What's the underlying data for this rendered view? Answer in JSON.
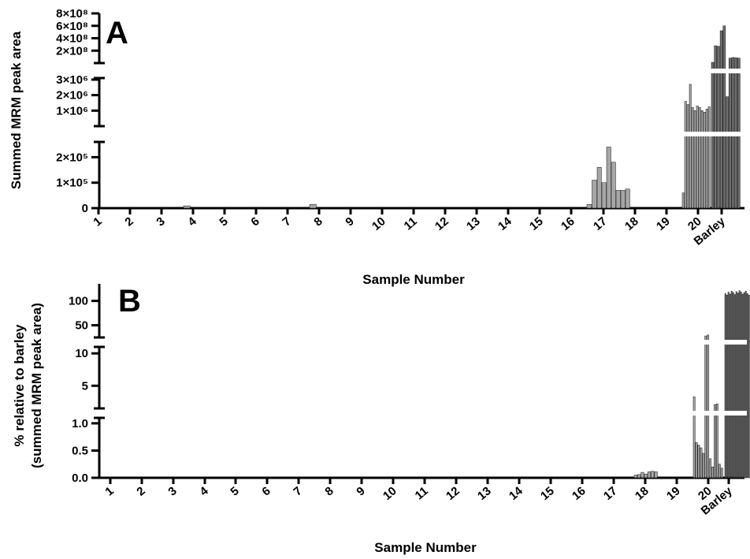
{
  "chart_data": [
    {
      "panel": "A",
      "type": "bar",
      "xlabel": "Sample Number",
      "ylabel": "Summed MRM peak area",
      "categories": [
        "1",
        "2",
        "3",
        "4",
        "5",
        "6",
        "7",
        "8",
        "9",
        "10",
        "11",
        "12",
        "13",
        "14",
        "15",
        "16",
        "17",
        "18",
        "19",
        "20",
        "Barley"
      ],
      "y_segments": [
        {
          "range": [
            0,
            260000
          ],
          "ticks": [
            0,
            100000,
            200000
          ],
          "tick_labels": [
            "0",
            "1×10⁵",
            "2×10⁵"
          ]
        },
        {
          "range": [
            0,
            3100000
          ],
          "ticks": [
            1000000,
            2000000,
            3000000
          ],
          "tick_labels": [
            "1×10⁶",
            "2×10⁶",
            "3×10⁶"
          ]
        },
        {
          "range": [
            0,
            800000000
          ],
          "ticks": [
            200000000,
            400000000,
            600000000,
            800000000
          ],
          "tick_labels": [
            "2×10⁸",
            "4×10⁸",
            "6×10⁸",
            "8×10⁸"
          ]
        }
      ],
      "colors": {
        "samples": "#a6a6a6",
        "barley": "#6e6e6e"
      },
      "groups": [
        {
          "category": "4",
          "values": [
            9000
          ]
        },
        {
          "category": "8",
          "values": [
            15000
          ]
        },
        {
          "category": "17",
          "values": [
            15000,
            110000
          ]
        },
        {
          "category": "18",
          "values": [
            160000,
            100000,
            240000,
            180000,
            70000,
            70000,
            75000
          ]
        },
        {
          "category": "20",
          "values": [
            60000,
            1600000,
            1400000,
            2700000,
            1200000,
            1000000,
            1300000,
            1200000,
            1000000,
            900000,
            1100000,
            1250000
          ]
        },
        {
          "category": "Barley",
          "values": [
            12000000,
            280000000,
            270000000,
            520000000,
            600000000,
            1900000,
            80000000,
            90000000,
            85000000,
            80000000
          ]
        }
      ]
    },
    {
      "panel": "B",
      "type": "bar",
      "xlabel": "Sample Number",
      "ylabel_line1": "% relative to barley",
      "ylabel_line2": "(summed MRM peak area)",
      "categories": [
        "1",
        "2",
        "3",
        "4",
        "5",
        "6",
        "7",
        "8",
        "9",
        "10",
        "11",
        "12",
        "13",
        "14",
        "15",
        "16",
        "17",
        "18",
        "19",
        "20",
        "Barley"
      ],
      "y_segments": [
        {
          "range": [
            0,
            1.1
          ],
          "ticks": [
            0,
            0.5,
            1.0
          ],
          "tick_labels": [
            "0.0",
            "0.5",
            "1.0"
          ]
        },
        {
          "range": [
            1.5,
            11
          ],
          "ticks": [
            5,
            10
          ],
          "tick_labels": [
            "5",
            "10"
          ]
        },
        {
          "range": [
            25,
            135
          ],
          "ticks": [
            50,
            100
          ],
          "tick_labels": [
            "50",
            "100"
          ]
        }
      ],
      "colors": {
        "samples": "#a6a6a6",
        "barley": "#6e6e6e"
      },
      "groups": [
        {
          "category": "18",
          "values": [
            0.05,
            0.06,
            0.1,
            0.07,
            0.11,
            0.12,
            0.11
          ]
        },
        {
          "category": "20",
          "values": [
            3.3,
            0.65,
            0.6,
            0.55,
            0.45,
            28,
            30,
            0.35,
            0.2,
            2.1,
            2.2,
            0.25,
            0.18
          ]
        },
        {
          "category": "Barley",
          "values": [
            115,
            112,
            118,
            114,
            120,
            117,
            113,
            119,
            116,
            121,
            118,
            114,
            117,
            120,
            115,
            112
          ]
        }
      ]
    }
  ]
}
